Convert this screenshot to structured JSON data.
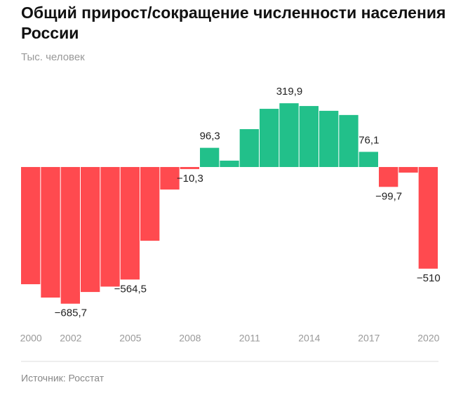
{
  "chart_data": {
    "type": "bar",
    "title": "Общий прирост/сокращение численности населения России",
    "subtitle": "Тыс. человек",
    "source": "Источник: Росстат",
    "categories": [
      "2000",
      null,
      "2002",
      null,
      null,
      "2005",
      null,
      null,
      "2008",
      null,
      null,
      "2011",
      null,
      null,
      "2014",
      null,
      null,
      "2017",
      null,
      null,
      "2020"
    ],
    "values": [
      -588,
      -655,
      -685.7,
      -627,
      -600,
      -564.5,
      -370,
      -113,
      -10.3,
      96.3,
      32,
      190,
      292,
      319.9,
      306,
      282,
      261,
      76.1,
      -99.7,
      -28,
      -510
    ],
    "value_labels": [
      null,
      null,
      "−685,7",
      null,
      null,
      "−564,5",
      null,
      null,
      "−10,3",
      "96,3",
      null,
      null,
      null,
      "319,9",
      null,
      null,
      null,
      "76,1",
      "−99,7",
      null,
      "−510"
    ],
    "positive_color": "#22c08a",
    "negative_color": "#ff4a4f",
    "ylim": [
      -750,
      420
    ]
  }
}
